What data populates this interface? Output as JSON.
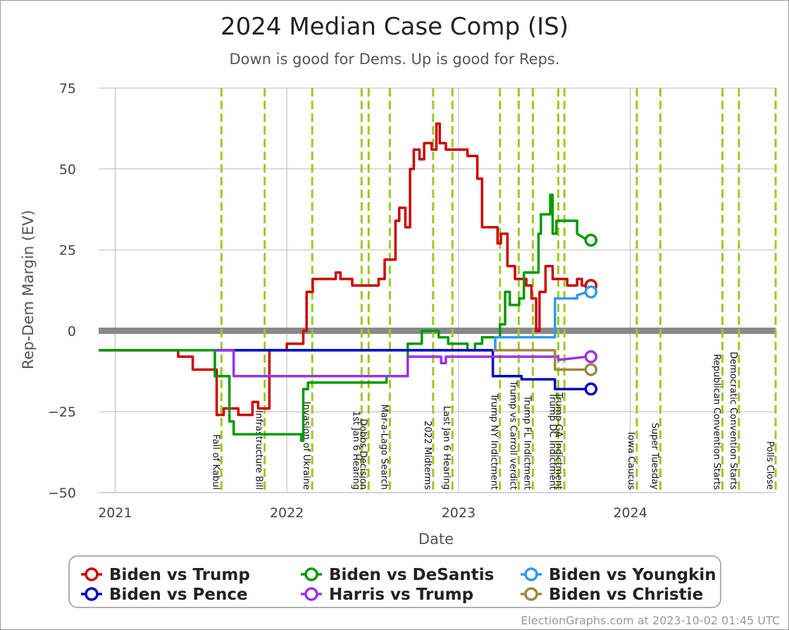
{
  "chart_data": {
    "type": "line",
    "title": "2024 Median Case Comp (IS)",
    "subtitle": "Down is good for Dems. Up is good for Reps.",
    "xlabel": "Date",
    "ylabel": "Rep-Dem Margin (EV)",
    "xlim": [
      "2020-11-27",
      "2024-11-05"
    ],
    "ylim": [
      -50,
      75
    ],
    "yticks": [
      75,
      50,
      25,
      0,
      -25,
      -50
    ],
    "xticks": [
      {
        "date": "2021-01-01",
        "label": "2021"
      },
      {
        "date": "2022-01-01",
        "label": "2022"
      },
      {
        "date": "2023-01-01",
        "label": "2023"
      },
      {
        "date": "2024-01-01",
        "label": "2024"
      }
    ],
    "grid": true,
    "legend_position": "bottom",
    "events": [
      {
        "date": "2021-08-15",
        "label": "Fall of Kabul"
      },
      {
        "date": "2021-11-15",
        "label": "Infrastructure Bill"
      },
      {
        "date": "2022-02-24",
        "label": "Invasion of Ukraine"
      },
      {
        "date": "2022-06-09",
        "label": "1st Jan 6 Hearing"
      },
      {
        "date": "2022-06-24",
        "label": "Dobbs Decision"
      },
      {
        "date": "2022-08-08",
        "label": "Mar-a-Lago Search"
      },
      {
        "date": "2022-11-08",
        "label": "2022 Midterms"
      },
      {
        "date": "2022-12-19",
        "label": "Last Jan 6 Hearing"
      },
      {
        "date": "2023-03-30",
        "label": "Trump NY Indictment"
      },
      {
        "date": "2023-05-09",
        "label": "Trump vs Carroll verdict"
      },
      {
        "date": "2023-06-08",
        "label": "Trump FL Indictment"
      },
      {
        "date": "2023-08-01",
        "label": "Trump DC Indictment"
      },
      {
        "date": "2023-08-14",
        "label": "Trump GA Indictment"
      },
      {
        "date": "2024-01-15",
        "label": "Iowa Caucus"
      },
      {
        "date": "2024-03-05",
        "label": "Super Tuesday"
      },
      {
        "date": "2024-07-15",
        "label": "Republican Convention Starts"
      },
      {
        "date": "2024-08-19",
        "label": "Democratic Convention Starts"
      },
      {
        "date": "2024-11-05",
        "label": "Polls Close"
      }
    ],
    "series": [
      {
        "name": "Biden vs Trump",
        "color": "#cc0000",
        "end_marker": true,
        "points": [
          [
            "2020-11-27",
            -6
          ],
          [
            "2021-05-15",
            -6
          ],
          [
            "2021-05-15",
            -8
          ],
          [
            "2021-06-15",
            -8
          ],
          [
            "2021-06-15",
            -12
          ],
          [
            "2021-08-05",
            -12
          ],
          [
            "2021-08-05",
            -26
          ],
          [
            "2021-08-20",
            -26
          ],
          [
            "2021-08-20",
            -24
          ],
          [
            "2021-09-20",
            -24
          ],
          [
            "2021-09-20",
            -26
          ],
          [
            "2021-10-20",
            -26
          ],
          [
            "2021-10-20",
            -22
          ],
          [
            "2021-11-01",
            -22
          ],
          [
            "2021-11-01",
            -24
          ],
          [
            "2021-11-25",
            -24
          ],
          [
            "2021-11-25",
            -6
          ],
          [
            "2022-01-01",
            -6
          ],
          [
            "2022-01-01",
            -4
          ],
          [
            "2022-02-05",
            -4
          ],
          [
            "2022-02-05",
            0
          ],
          [
            "2022-02-12",
            0
          ],
          [
            "2022-02-12",
            12
          ],
          [
            "2022-02-25",
            12
          ],
          [
            "2022-02-25",
            16
          ],
          [
            "2022-04-15",
            16
          ],
          [
            "2022-04-15",
            18
          ],
          [
            "2022-04-25",
            18
          ],
          [
            "2022-04-25",
            16
          ],
          [
            "2022-05-20",
            16
          ],
          [
            "2022-05-20",
            14
          ],
          [
            "2022-07-15",
            14
          ],
          [
            "2022-07-15",
            16
          ],
          [
            "2022-07-28",
            16
          ],
          [
            "2022-07-28",
            22
          ],
          [
            "2022-08-20",
            22
          ],
          [
            "2022-08-20",
            34
          ],
          [
            "2022-08-28",
            34
          ],
          [
            "2022-08-28",
            38
          ],
          [
            "2022-09-10",
            38
          ],
          [
            "2022-09-10",
            32
          ],
          [
            "2022-09-20",
            32
          ],
          [
            "2022-09-20",
            50
          ],
          [
            "2022-09-28",
            50
          ],
          [
            "2022-09-28",
            56
          ],
          [
            "2022-10-10",
            56
          ],
          [
            "2022-10-10",
            53
          ],
          [
            "2022-10-20",
            53
          ],
          [
            "2022-10-20",
            58
          ],
          [
            "2022-11-05",
            58
          ],
          [
            "2022-11-05",
            56
          ],
          [
            "2022-11-15",
            56
          ],
          [
            "2022-11-15",
            64
          ],
          [
            "2022-11-22",
            64
          ],
          [
            "2022-11-22",
            58
          ],
          [
            "2022-12-05",
            58
          ],
          [
            "2022-12-05",
            56
          ],
          [
            "2023-01-20",
            56
          ],
          [
            "2023-01-20",
            54
          ],
          [
            "2023-02-10",
            54
          ],
          [
            "2023-02-10",
            47
          ],
          [
            "2023-02-20",
            47
          ],
          [
            "2023-02-20",
            32
          ],
          [
            "2023-03-25",
            32
          ],
          [
            "2023-03-25",
            27
          ],
          [
            "2023-04-01",
            27
          ],
          [
            "2023-04-01",
            30
          ],
          [
            "2023-04-15",
            30
          ],
          [
            "2023-04-15",
            20
          ],
          [
            "2023-05-01",
            20
          ],
          [
            "2023-05-01",
            16
          ],
          [
            "2023-05-25",
            16
          ],
          [
            "2023-05-25",
            14
          ],
          [
            "2023-06-05",
            14
          ],
          [
            "2023-06-05",
            10
          ],
          [
            "2023-06-15",
            10
          ],
          [
            "2023-06-15",
            0
          ],
          [
            "2023-06-22",
            0
          ],
          [
            "2023-06-22",
            12
          ],
          [
            "2023-07-05",
            12
          ],
          [
            "2023-07-05",
            20
          ],
          [
            "2023-07-20",
            20
          ],
          [
            "2023-07-20",
            16
          ],
          [
            "2023-08-20",
            16
          ],
          [
            "2023-08-20",
            14
          ],
          [
            "2023-09-10",
            14
          ],
          [
            "2023-09-10",
            16
          ],
          [
            "2023-09-20",
            16
          ],
          [
            "2023-09-20",
            14
          ],
          [
            "2023-10-02",
            14
          ]
        ]
      },
      {
        "name": "Biden vs DeSantis",
        "color": "#009900",
        "end_marker": true,
        "points": [
          [
            "2020-11-27",
            -6
          ],
          [
            "2021-08-01",
            -6
          ],
          [
            "2021-08-01",
            -14
          ],
          [
            "2021-09-01",
            -14
          ],
          [
            "2021-09-01",
            -28
          ],
          [
            "2021-09-10",
            -28
          ],
          [
            "2021-09-10",
            -32
          ],
          [
            "2022-02-01",
            -32
          ],
          [
            "2022-02-01",
            -34
          ],
          [
            "2022-02-05",
            -34
          ],
          [
            "2022-02-05",
            -18
          ],
          [
            "2022-02-15",
            -18
          ],
          [
            "2022-02-15",
            -16
          ],
          [
            "2022-08-01",
            -16
          ],
          [
            "2022-08-01",
            -14
          ],
          [
            "2022-09-15",
            -14
          ],
          [
            "2022-09-15",
            -4
          ],
          [
            "2022-10-15",
            -4
          ],
          [
            "2022-10-15",
            0
          ],
          [
            "2022-11-20",
            0
          ],
          [
            "2022-11-20",
            -2
          ],
          [
            "2022-12-10",
            -2
          ],
          [
            "2022-12-10",
            -4
          ],
          [
            "2023-01-20",
            -4
          ],
          [
            "2023-01-20",
            -6
          ],
          [
            "2023-02-05",
            -6
          ],
          [
            "2023-02-05",
            -4
          ],
          [
            "2023-02-20",
            -4
          ],
          [
            "2023-02-20",
            -2
          ],
          [
            "2023-03-30",
            -2
          ],
          [
            "2023-03-30",
            2
          ],
          [
            "2023-04-10",
            2
          ],
          [
            "2023-04-10",
            12
          ],
          [
            "2023-04-20",
            12
          ],
          [
            "2023-04-20",
            8
          ],
          [
            "2023-05-10",
            8
          ],
          [
            "2023-05-10",
            10
          ],
          [
            "2023-05-20",
            10
          ],
          [
            "2023-05-20",
            18
          ],
          [
            "2023-06-20",
            18
          ],
          [
            "2023-06-20",
            30
          ],
          [
            "2023-06-25",
            30
          ],
          [
            "2023-06-25",
            36
          ],
          [
            "2023-07-15",
            36
          ],
          [
            "2023-07-15",
            42
          ],
          [
            "2023-07-20",
            42
          ],
          [
            "2023-07-20",
            30
          ],
          [
            "2023-07-28",
            30
          ],
          [
            "2023-07-28",
            34
          ],
          [
            "2023-09-10",
            34
          ],
          [
            "2023-09-10",
            30
          ],
          [
            "2023-10-02",
            28
          ]
        ]
      },
      {
        "name": "Biden vs Youngkin",
        "color": "#3399ee",
        "end_marker": true,
        "points": [
          [
            "2021-08-01",
            -6
          ],
          [
            "2023-03-20",
            -6
          ],
          [
            "2023-03-20",
            -2
          ],
          [
            "2023-07-25",
            -2
          ],
          [
            "2023-07-25",
            10
          ],
          [
            "2023-09-10",
            10
          ],
          [
            "2023-09-10",
            11
          ],
          [
            "2023-10-02",
            12
          ]
        ]
      },
      {
        "name": "Biden vs Pence",
        "color": "#0000bb",
        "end_marker": true,
        "points": [
          [
            "2021-08-01",
            -6
          ],
          [
            "2023-03-15",
            -6
          ],
          [
            "2023-03-15",
            -14
          ],
          [
            "2023-05-15",
            -14
          ],
          [
            "2023-05-15",
            -15
          ],
          [
            "2023-07-25",
            -15
          ],
          [
            "2023-07-25",
            -18
          ],
          [
            "2023-10-02",
            -18
          ]
        ]
      },
      {
        "name": "Harris vs Trump",
        "color": "#9933ee",
        "end_marker": true,
        "points": [
          [
            "2021-08-01",
            -6
          ],
          [
            "2021-09-10",
            -6
          ],
          [
            "2021-09-10",
            -14
          ],
          [
            "2022-09-15",
            -14
          ],
          [
            "2022-09-15",
            -8
          ],
          [
            "2022-11-25",
            -8
          ],
          [
            "2022-11-25",
            -10
          ],
          [
            "2022-12-05",
            -10
          ],
          [
            "2022-12-05",
            -8
          ],
          [
            "2023-08-01",
            -8
          ],
          [
            "2023-08-01",
            -9
          ],
          [
            "2023-10-02",
            -8
          ]
        ]
      },
      {
        "name": "Biden vs Christie",
        "color": "#998844",
        "end_marker": true,
        "points": [
          [
            "2023-03-15",
            -6
          ],
          [
            "2023-07-25",
            -6
          ],
          [
            "2023-07-25",
            -12
          ],
          [
            "2023-10-02",
            -12
          ]
        ]
      }
    ],
    "credit": "ElectionGraphs.com at 2023-10-02 01:45 UTC"
  }
}
